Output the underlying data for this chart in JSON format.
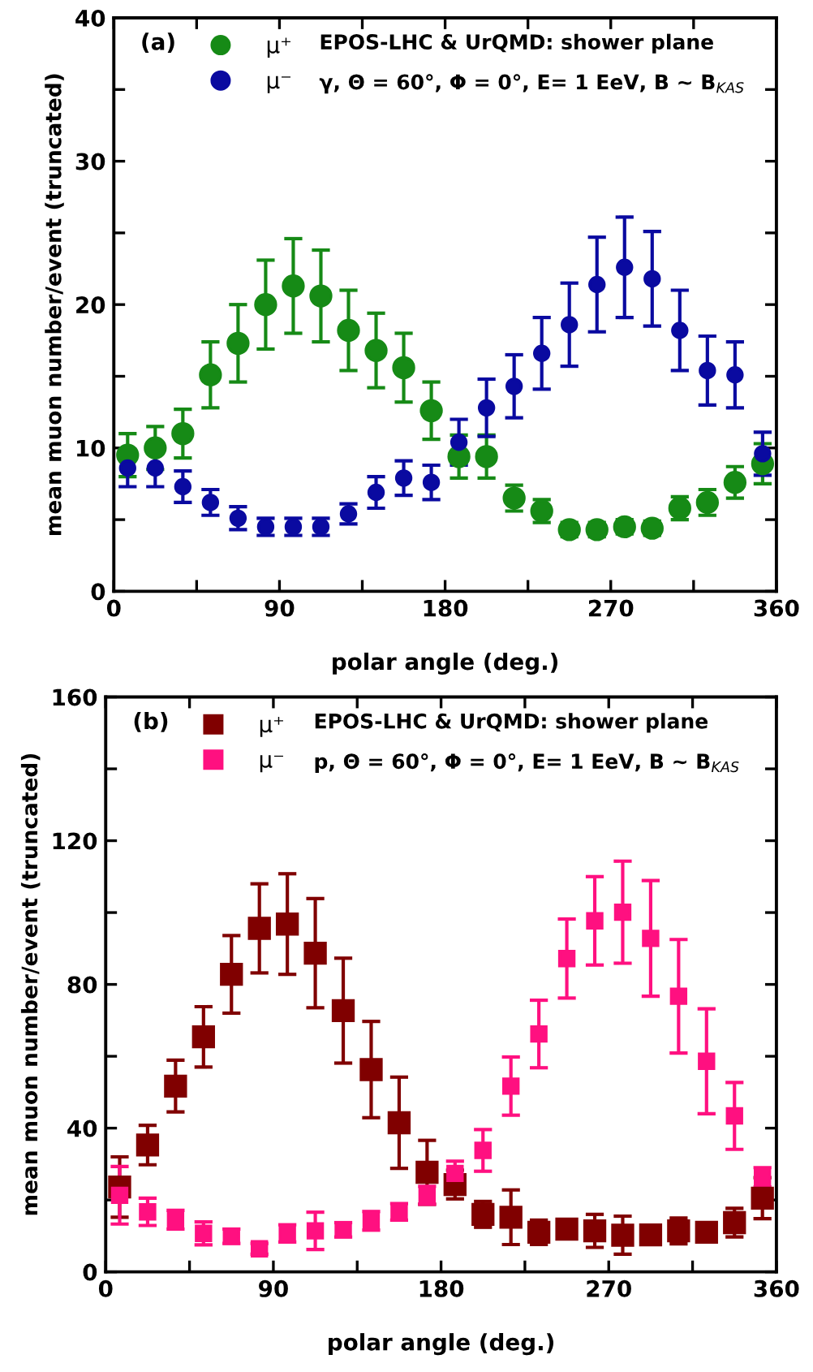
{
  "chart_data": [
    {
      "type": "scatter",
      "title": "(a)",
      "xlabel": "polar angle (deg.)",
      "ylabel": "mean muon number/event (truncated)",
      "annotations": [
        "EPOS-LHC & UrQMD: shower plane",
        "γ, Θ = 60°, Φ = 0°, E= 1 EeV, B ~ B$_{KAS}$"
      ],
      "x": [
        7.5,
        22.5,
        37.5,
        52.5,
        67.5,
        82.5,
        97.5,
        112.5,
        127.5,
        142.5,
        157.5,
        172.5,
        187.5,
        202.5,
        217.5,
        232.5,
        247.5,
        262.5,
        277.5,
        292.5,
        307.5,
        322.5,
        337.5,
        352.5
      ],
      "series": [
        {
          "name": "μ⁺",
          "color": "#168a16",
          "marker": "circle",
          "values": [
            9.5,
            10.0,
            11.0,
            15.1,
            17.3,
            20.0,
            21.3,
            20.6,
            18.2,
            16.8,
            15.6,
            12.6,
            9.4,
            9.4,
            6.5,
            5.6,
            4.3,
            4.3,
            4.5,
            4.4,
            5.8,
            6.2,
            7.6,
            8.9
          ],
          "errors": [
            1.5,
            1.5,
            1.7,
            2.3,
            2.7,
            3.1,
            3.3,
            3.2,
            2.8,
            2.6,
            2.4,
            2.0,
            1.5,
            1.5,
            0.9,
            0.8,
            0.5,
            0.5,
            0.5,
            0.5,
            0.8,
            0.9,
            1.1,
            1.4
          ]
        },
        {
          "name": "μ⁻",
          "color": "#0a0aa0",
          "marker": "circle",
          "values": [
            8.6,
            8.6,
            7.3,
            6.2,
            5.1,
            4.5,
            4.5,
            4.5,
            5.4,
            6.9,
            7.9,
            7.6,
            10.4,
            12.8,
            14.3,
            16.6,
            18.6,
            21.4,
            22.6,
            21.8,
            18.2,
            15.4,
            15.1,
            9.6
          ],
          "errors": [
            1.3,
            1.3,
            1.1,
            0.9,
            0.8,
            0.6,
            0.6,
            0.6,
            0.7,
            1.1,
            1.2,
            1.2,
            1.6,
            2.0,
            2.2,
            2.5,
            2.9,
            3.3,
            3.5,
            3.3,
            2.8,
            2.4,
            2.3,
            1.5
          ]
        }
      ],
      "xlim": [
        0,
        360
      ],
      "xticks": [
        0,
        {
          "value": 45,
          "label": null
        },
        90,
        {
          "value": 135,
          "label": null
        },
        180,
        {
          "value": 225,
          "label": null
        },
        270,
        {
          "value": 315,
          "label": null
        },
        360
      ],
      "ylim": [
        0,
        40
      ],
      "yticks": [
        0,
        {
          "value": 5,
          "label": null
        },
        10,
        {
          "value": 15,
          "label": null
        },
        20,
        {
          "value": 25,
          "label": null
        },
        30,
        {
          "value": 35,
          "label": null
        },
        40
      ],
      "grid": false,
      "legend": "top left"
    },
    {
      "type": "scatter",
      "title": "(b)",
      "xlabel": "polar angle (deg.)",
      "ylabel": "mean muon number/event (truncated)",
      "annotations": [
        "EPOS-LHC & UrQMD: shower plane",
        "p, Θ = 60°, Φ = 0°, E= 1 EeV, B ~ B$_{KAS}$"
      ],
      "x": [
        7.5,
        22.5,
        37.5,
        52.5,
        67.5,
        82.5,
        97.5,
        112.5,
        127.5,
        142.5,
        157.5,
        172.5,
        187.5,
        202.5,
        217.5,
        232.5,
        247.5,
        262.5,
        277.5,
        292.5,
        307.5,
        322.5,
        337.5,
        352.5
      ],
      "series": [
        {
          "name": "μ⁺",
          "color": "#800000",
          "marker": "square",
          "values": [
            23.6,
            35.3,
            51.7,
            65.4,
            82.8,
            95.6,
            96.8,
            88.7,
            72.7,
            56.3,
            41.5,
            27.7,
            24.3,
            16.0,
            15.2,
            11.0,
            11.9,
            11.4,
            10.2,
            10.3,
            11.4,
            11.0,
            13.7,
            20.5
          ],
          "errors": [
            8.4,
            5.5,
            7.2,
            8.4,
            10.8,
            12.4,
            14.0,
            15.2,
            14.6,
            13.4,
            12.7,
            8.9,
            4.0,
            3.6,
            7.6,
            3.4,
            2.0,
            4.6,
            5.3,
            2.0,
            3.6,
            2.5,
            4.0,
            5.7
          ]
        },
        {
          "name": "μ⁻",
          "color": "#ff1080",
          "marker": "square",
          "values": [
            21.3,
            16.7,
            14.5,
            10.7,
            9.9,
            6.4,
            10.7,
            11.4,
            11.7,
            14.2,
            16.7,
            21.3,
            27.4,
            33.8,
            51.7,
            66.2,
            87.2,
            97.7,
            100.1,
            92.8,
            76.7,
            58.6,
            43.4,
            26.3
          ],
          "errors": [
            8.0,
            3.8,
            2.6,
            3.2,
            2.0,
            1.5,
            2.4,
            5.2,
            2.0,
            2.6,
            2.3,
            2.5,
            3.4,
            5.8,
            8.1,
            9.4,
            11.0,
            12.3,
            14.2,
            16.1,
            15.8,
            14.6,
            9.3,
            2.7
          ]
        }
      ],
      "xlim": [
        0,
        360
      ],
      "xticks": [
        0,
        {
          "value": 45,
          "label": null
        },
        90,
        {
          "value": 135,
          "label": null
        },
        180,
        {
          "value": 225,
          "label": null
        },
        270,
        {
          "value": 315,
          "label": null
        },
        360
      ],
      "ylim": [
        0,
        160
      ],
      "yticks": [
        0,
        {
          "value": 20,
          "label": null
        },
        40,
        {
          "value": 60,
          "label": null
        },
        80,
        {
          "value": 100,
          "label": null
        },
        120,
        {
          "value": 140,
          "label": null
        },
        160
      ],
      "grid": false,
      "legend": "top left"
    }
  ]
}
